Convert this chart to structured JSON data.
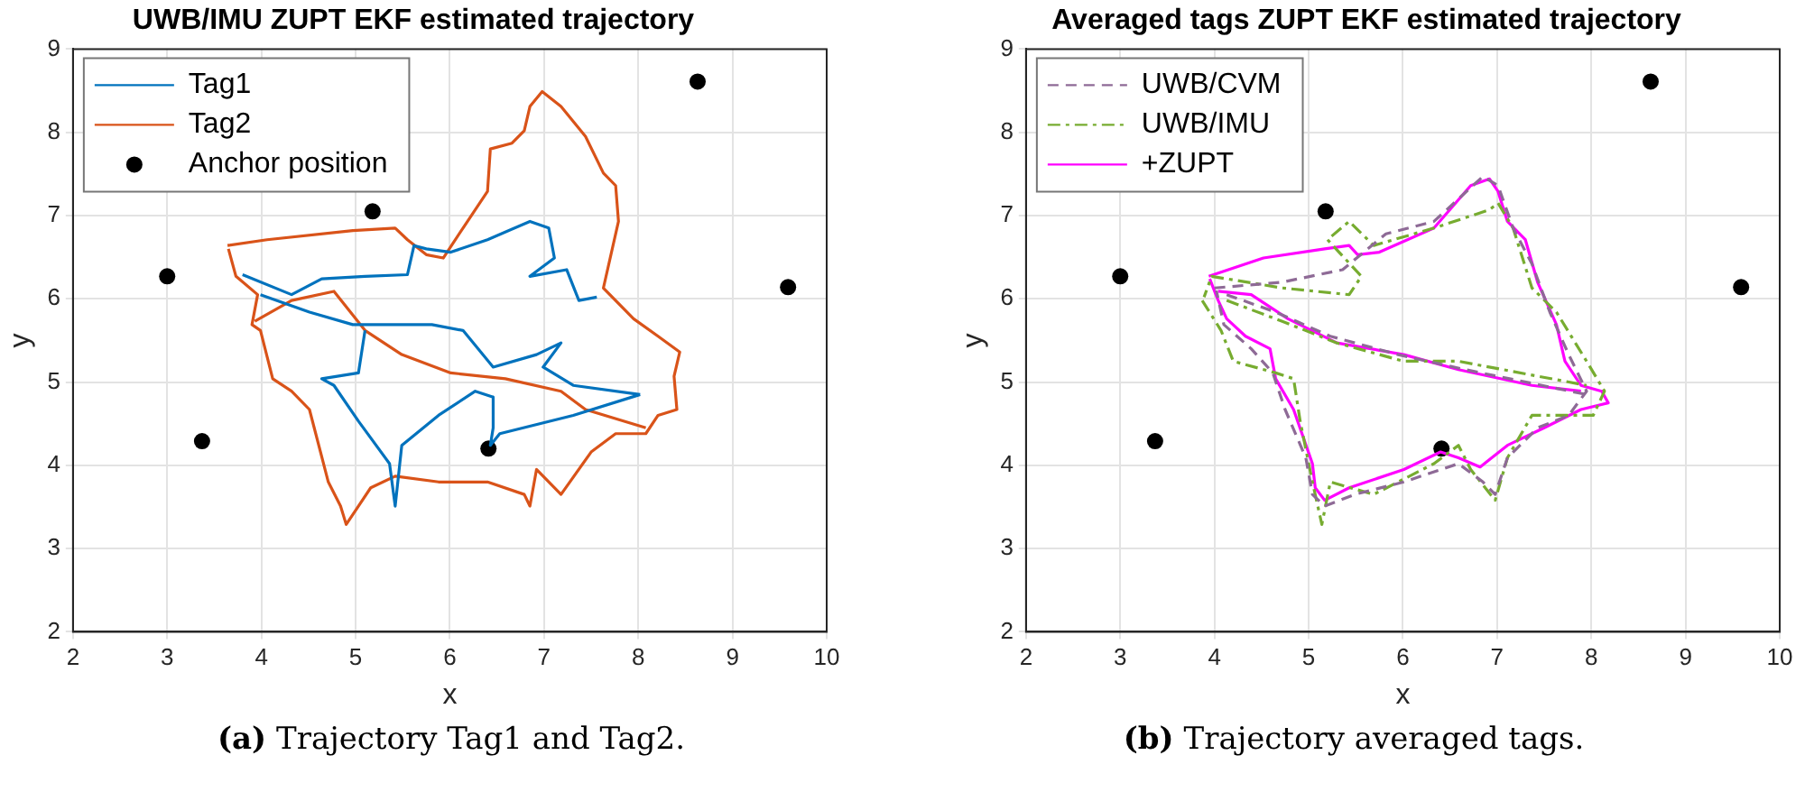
{
  "chart_data": [
    {
      "type": "line",
      "title": "UWB/IMU ZUPT EKF estimated trajectory",
      "xlabel": "x",
      "ylabel": "y",
      "xlim": [
        2,
        10
      ],
      "ylim": [
        2,
        9
      ],
      "xticks": [
        2,
        3,
        4,
        5,
        6,
        7,
        8,
        9,
        10
      ],
      "yticks": [
        2,
        3,
        4,
        5,
        6,
        7,
        8,
        9
      ],
      "grid": true,
      "legend": "top left",
      "marker": "none",
      "annotations": [
        "(a) Trajectory Tag1 and Tag2."
      ],
      "series": [
        {
          "name": "Tag1",
          "line_style": "solid",
          "color": "#0072bd",
          "x": [
            3.8,
            4.32,
            4.64,
            5.1,
            5.55,
            5.62,
            5.75,
            6.01,
            6.4,
            6.85,
            7.05,
            7.11,
            6.85,
            7.24,
            7.37,
            7.56,
            null,
            3.99,
            4.51,
            4.97,
            5.42,
            5.81,
            6.14,
            6.46,
            6.92,
            7.18,
            6.99,
            7.31,
            8.02,
            null,
            5.1,
            5.03,
            4.64,
            4.77,
            5.03,
            5.36,
            5.42,
            5.49,
            5.88,
            6.27,
            6.46,
            6.46,
            6.43,
            6.53,
            7.31,
            8.02
          ],
          "values": [
            6.29,
            6.05,
            6.24,
            6.27,
            6.29,
            6.64,
            6.6,
            6.56,
            6.71,
            6.93,
            6.85,
            6.49,
            6.27,
            6.35,
            5.98,
            6.02,
            null,
            6.05,
            5.84,
            5.69,
            5.69,
            5.69,
            5.62,
            5.18,
            5.33,
            5.47,
            5.18,
            4.96,
            4.85,
            null,
            5.62,
            5.11,
            5.04,
            4.96,
            4.53,
            4.02,
            3.51,
            4.24,
            4.6,
            4.89,
            4.82,
            4.45,
            4.24,
            4.38,
            4.6,
            4.85
          ]
        },
        {
          "name": "Tag2",
          "line_style": "solid",
          "color": "#d95319",
          "x": [
            3.64,
            4.06,
            4.97,
            5.42,
            5.55,
            5.75,
            5.93,
            6.14,
            6.4,
            6.43,
            6.66,
            6.79,
            6.85,
            6.98,
            7.18,
            7.44,
            7.63,
            7.76,
            7.79,
            7.63,
            7.95,
            8.21,
            8.44,
            8.38,
            8.41,
            8.21,
            8.08,
            7.76,
            7.5,
            7.18,
            6.92,
            6.85,
            6.79,
            6.4,
            5.88,
            5.42,
            5.16,
            5.03,
            4.9,
            4.84,
            4.71,
            4.51,
            4.32,
            4.12,
            3.99,
            3.9,
            3.96,
            3.73,
            3.65,
            null,
            3.93,
            4.32,
            4.77,
            5.1,
            5.49,
            6.01,
            6.59,
            7.18,
            7.44,
            8.08
          ],
          "values": [
            6.64,
            6.71,
            6.82,
            6.85,
            6.71,
            6.53,
            6.49,
            6.85,
            7.29,
            7.8,
            7.87,
            8.02,
            8.31,
            8.49,
            8.31,
            7.95,
            7.51,
            7.36,
            6.93,
            6.13,
            5.76,
            5.55,
            5.36,
            5.07,
            4.67,
            4.6,
            4.38,
            4.38,
            4.16,
            3.65,
            3.95,
            3.51,
            3.65,
            3.8,
            3.8,
            3.87,
            3.73,
            3.51,
            3.29,
            3.51,
            3.8,
            4.67,
            4.89,
            5.04,
            5.62,
            5.69,
            6.05,
            6.27,
            6.6,
            null,
            5.73,
            5.98,
            6.09,
            5.62,
            5.33,
            5.11,
            5.04,
            4.89,
            4.67,
            4.45
          ]
        },
        {
          "name": "Anchor position",
          "type": "scatter",
          "marker": "circle",
          "color": "#000000",
          "x": [
            3.0,
            3.37,
            5.18,
            6.41,
            8.63,
            9.59
          ],
          "values": [
            6.27,
            4.29,
            7.05,
            4.2,
            8.61,
            6.14
          ]
        }
      ]
    },
    {
      "type": "line",
      "title": "Averaged tags ZUPT EKF estimated trajectory",
      "xlabel": "x",
      "ylabel": "y",
      "xlim": [
        2,
        10
      ],
      "ylim": [
        2,
        9
      ],
      "xticks": [
        2,
        3,
        4,
        5,
        6,
        7,
        8,
        9,
        10
      ],
      "yticks": [
        2,
        3,
        4,
        5,
        6,
        7,
        8,
        9
      ],
      "grid": true,
      "legend": "top left",
      "marker": "none",
      "annotations": [
        "(b) Trajectory averaged tags."
      ],
      "series": [
        {
          "name": "UWB/CVM",
          "color": "#8e6a96",
          "line_style": "dashed",
          "x": [
            4.0,
            4.72,
            5.36,
            5.82,
            6.33,
            6.85,
            7.01,
            7.17,
            7.37,
            7.56,
            7.76,
            7.95,
            7.76,
            7.43,
            7.11,
            6.98,
            6.85,
            6.59,
            6.01,
            5.49,
            5.17,
            5.04,
            4.97,
            4.75,
            4.62,
            4.39,
            4.1,
            4.02,
            null,
            4.13,
            4.65,
            5.23,
            5.95,
            6.66,
            7.95
          ],
          "values": [
            6.13,
            6.2,
            6.35,
            6.78,
            6.93,
            7.47,
            7.36,
            6.85,
            6.42,
            5.84,
            5.33,
            4.89,
            4.6,
            4.45,
            4.09,
            3.65,
            3.8,
            4.02,
            3.8,
            3.65,
            3.51,
            3.65,
            4.09,
            4.67,
            5.11,
            5.4,
            5.69,
            6.1,
            null,
            6.05,
            5.84,
            5.55,
            5.33,
            5.15,
            4.85
          ]
        },
        {
          "name": "UWB/IMU",
          "color": "#77ac30",
          "line_style": "dashdot",
          "x": [
            3.87,
            4.07,
            4.2,
            4.65,
            4.84,
            4.91,
            5.04,
            5.14,
            5.23,
            5.69,
            6.33,
            6.59,
            6.72,
            6.98,
            7.11,
            7.37,
            8.02,
            8.14,
            7.95,
            7.63,
            7.37,
            7.17,
            7.01,
            6.92,
            6.33,
            5.69,
            5.43,
            5.2,
            5.56,
            5.43,
            4.72,
            3.97,
            3.89,
            null,
            4.13,
            4.72,
            5.3,
            6.01,
            6.59,
            7.95
          ],
          "values": [
            5.98,
            5.62,
            5.25,
            5.11,
            5.04,
            4.53,
            3.8,
            3.29,
            3.8,
            3.65,
            4.02,
            4.24,
            3.95,
            3.58,
            4.09,
            4.6,
            4.6,
            4.89,
            5.25,
            5.84,
            6.13,
            6.85,
            7.15,
            7.07,
            6.85,
            6.64,
            6.93,
            6.71,
            6.27,
            6.05,
            6.13,
            6.27,
            6.02,
            null,
            5.98,
            5.73,
            5.47,
            5.25,
            5.25,
            4.96
          ]
        },
        {
          "name": "+ZUPT",
          "color": "#ff00ff",
          "line_style": "solid",
          "x": [
            3.94,
            4.52,
            5.17,
            5.43,
            5.52,
            5.75,
            6.33,
            6.72,
            6.92,
            7.01,
            7.11,
            7.3,
            7.43,
            7.63,
            7.72,
            7.89,
            8.11,
            8.18,
            7.89,
            7.5,
            7.11,
            6.82,
            6.59,
            6.4,
            6.01,
            5.43,
            5.17,
            5.07,
            5.04,
            4.84,
            4.65,
            4.59,
            4.33,
            4.13,
            4.04,
            3.95,
            null,
            4.04,
            4.39,
            4.78,
            5.3,
            6.01,
            6.59,
            7.37,
            7.89
          ],
          "values": [
            6.27,
            6.49,
            6.6,
            6.64,
            6.53,
            6.56,
            6.85,
            7.36,
            7.44,
            7.29,
            6.93,
            6.71,
            6.2,
            5.69,
            5.25,
            4.96,
            4.89,
            4.75,
            4.67,
            4.45,
            4.24,
            3.98,
            4.09,
            4.16,
            3.95,
            3.73,
            3.58,
            3.73,
            4.02,
            4.67,
            5.04,
            5.4,
            5.55,
            5.76,
            5.98,
            6.24,
            null,
            6.09,
            6.05,
            5.76,
            5.47,
            5.33,
            5.15,
            4.96,
            4.89
          ]
        },
        {
          "type": "scatter",
          "marker": "circle",
          "color": "#000000",
          "x": [
            3.0,
            3.37,
            5.18,
            6.41,
            8.63,
            9.59
          ],
          "values": [
            6.27,
            4.29,
            7.05,
            4.2,
            8.61,
            6.14
          ]
        }
      ]
    }
  ]
}
